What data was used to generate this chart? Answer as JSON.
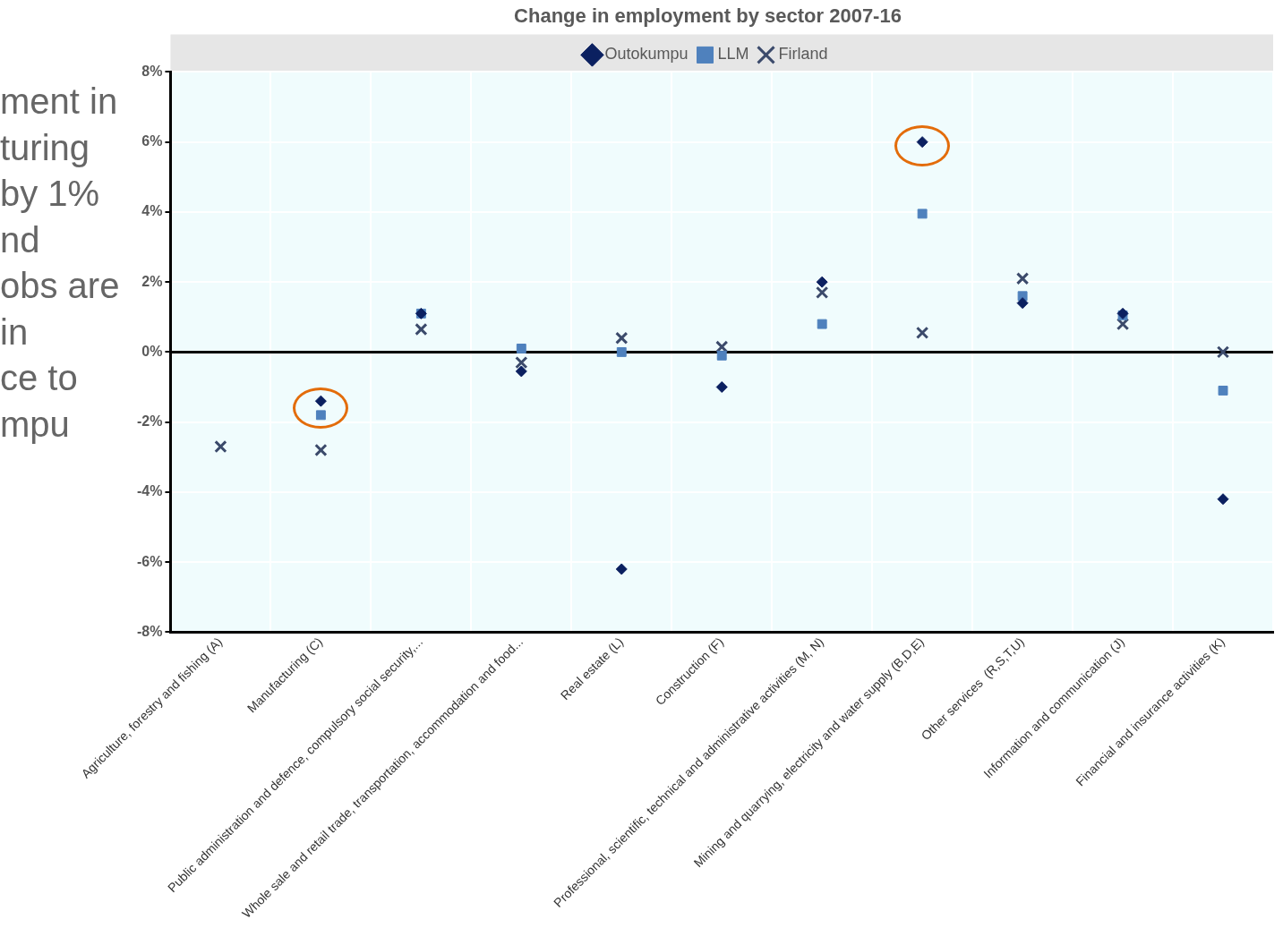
{
  "chart_data": {
    "type": "scatter",
    "title": "Change in employment by sector 2007-16",
    "annotations": [
      "ment in",
      "turing",
      "by 1%",
      "nd",
      "obs are",
      "in",
      "ce to",
      "mpu"
    ],
    "categories": [
      "Agriculture, forestry and fishing (A)",
      "Manufacturing (C)",
      "Public administration and defence, compulsory social security,...",
      "Whole sale and retail trade, transportation, accommodation and food...",
      "Real estate (L)",
      "Construction (F)",
      "Professional, scientific, technical and administrative activities (M, N)",
      "Mining and quarrying, electricity and water supply (B,D,E)",
      "Other services  (R,S,T,U)",
      "Information and communication (J)",
      "Financial and insurance activities (K)"
    ],
    "series": [
      {
        "name": "Outokumpu",
        "color": "#0b2060",
        "marker": "diamond",
        "values": [
          null,
          -1.4,
          1.1,
          -0.55,
          -6.2,
          -1.0,
          2.0,
          6.0,
          1.4,
          1.1,
          -4.2
        ]
      },
      {
        "name": "LLM",
        "color": "#4f81bd",
        "marker": "square",
        "values": [
          null,
          -1.8,
          1.1,
          0.1,
          0,
          -0.1,
          0.8,
          3.95,
          1.6,
          1.05,
          -1.1
        ]
      },
      {
        "name": "Firland",
        "color": "#3b4a6b",
        "marker": "cross",
        "values": [
          -2.7,
          -2.8,
          0.65,
          -0.3,
          0.4,
          0.15,
          1.7,
          0.55,
          2.1,
          0.8,
          0
        ]
      }
    ],
    "ylim": [
      -8,
      8
    ],
    "yticks": [
      {
        "value": 8,
        "label": "8%"
      },
      {
        "value": 6,
        "label": "6%"
      },
      {
        "value": 4,
        "label": "4%"
      },
      {
        "value": 2,
        "label": "2%"
      },
      {
        "value": 0,
        "label": "0%"
      },
      {
        "value": -2,
        "label": "-2%"
      },
      {
        "value": -4,
        "label": "-4%"
      },
      {
        "value": -6,
        "label": "-6%"
      },
      {
        "value": -8,
        "label": "-8%"
      }
    ],
    "ref_lines": [
      {
        "axis": "y",
        "value": 0,
        "color": "#000000"
      }
    ],
    "grid": true,
    "legend": "top"
  }
}
